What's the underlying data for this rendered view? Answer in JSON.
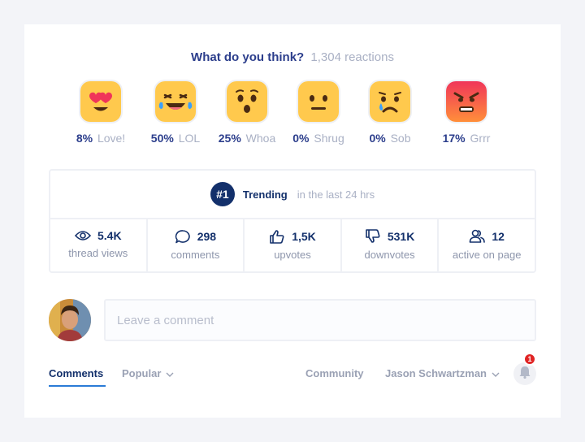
{
  "question": {
    "text": "What do you think?",
    "count": "1,304 reactions"
  },
  "reactions": [
    {
      "pct": "8%",
      "name": "Love!",
      "icon": "heart-eyes-emoji-icon"
    },
    {
      "pct": "50%",
      "name": "LOL",
      "icon": "laughing-tears-emoji-icon"
    },
    {
      "pct": "25%",
      "name": "Whoa",
      "icon": "surprised-emoji-icon"
    },
    {
      "pct": "0%",
      "name": "Shrug",
      "icon": "neutral-emoji-icon"
    },
    {
      "pct": "0%",
      "name": "Sob",
      "icon": "crying-emoji-icon"
    },
    {
      "pct": "17%",
      "name": "Grrr",
      "icon": "angry-emoji-icon"
    }
  ],
  "trending": {
    "rank": "#1",
    "label": "Trending",
    "sub": "in the last 24 hrs"
  },
  "metrics": [
    {
      "value": "5.4K",
      "caption": "thread views",
      "icon": "eye-icon"
    },
    {
      "value": "298",
      "caption": "comments",
      "icon": "comment-bubble-icon"
    },
    {
      "value": "1,5K",
      "caption": "upvotes",
      "icon": "thumbs-up-icon"
    },
    {
      "value": "531K",
      "caption": "downvotes",
      "icon": "thumbs-down-icon"
    },
    {
      "value": "12",
      "caption": "active on page",
      "icon": "users-icon"
    }
  ],
  "comment": {
    "placeholder": "Leave a comment"
  },
  "tabs": {
    "comments": "Comments",
    "popular": "Popular",
    "community": "Community",
    "user": "Jason Schwartzman",
    "notifications": "1"
  },
  "colors": {
    "primary": "#13306b",
    "accent": "#2a7bd6",
    "emoji_yellow": "#ffc94d",
    "angry_red": "#f0355a",
    "badge_red": "#e02424"
  }
}
